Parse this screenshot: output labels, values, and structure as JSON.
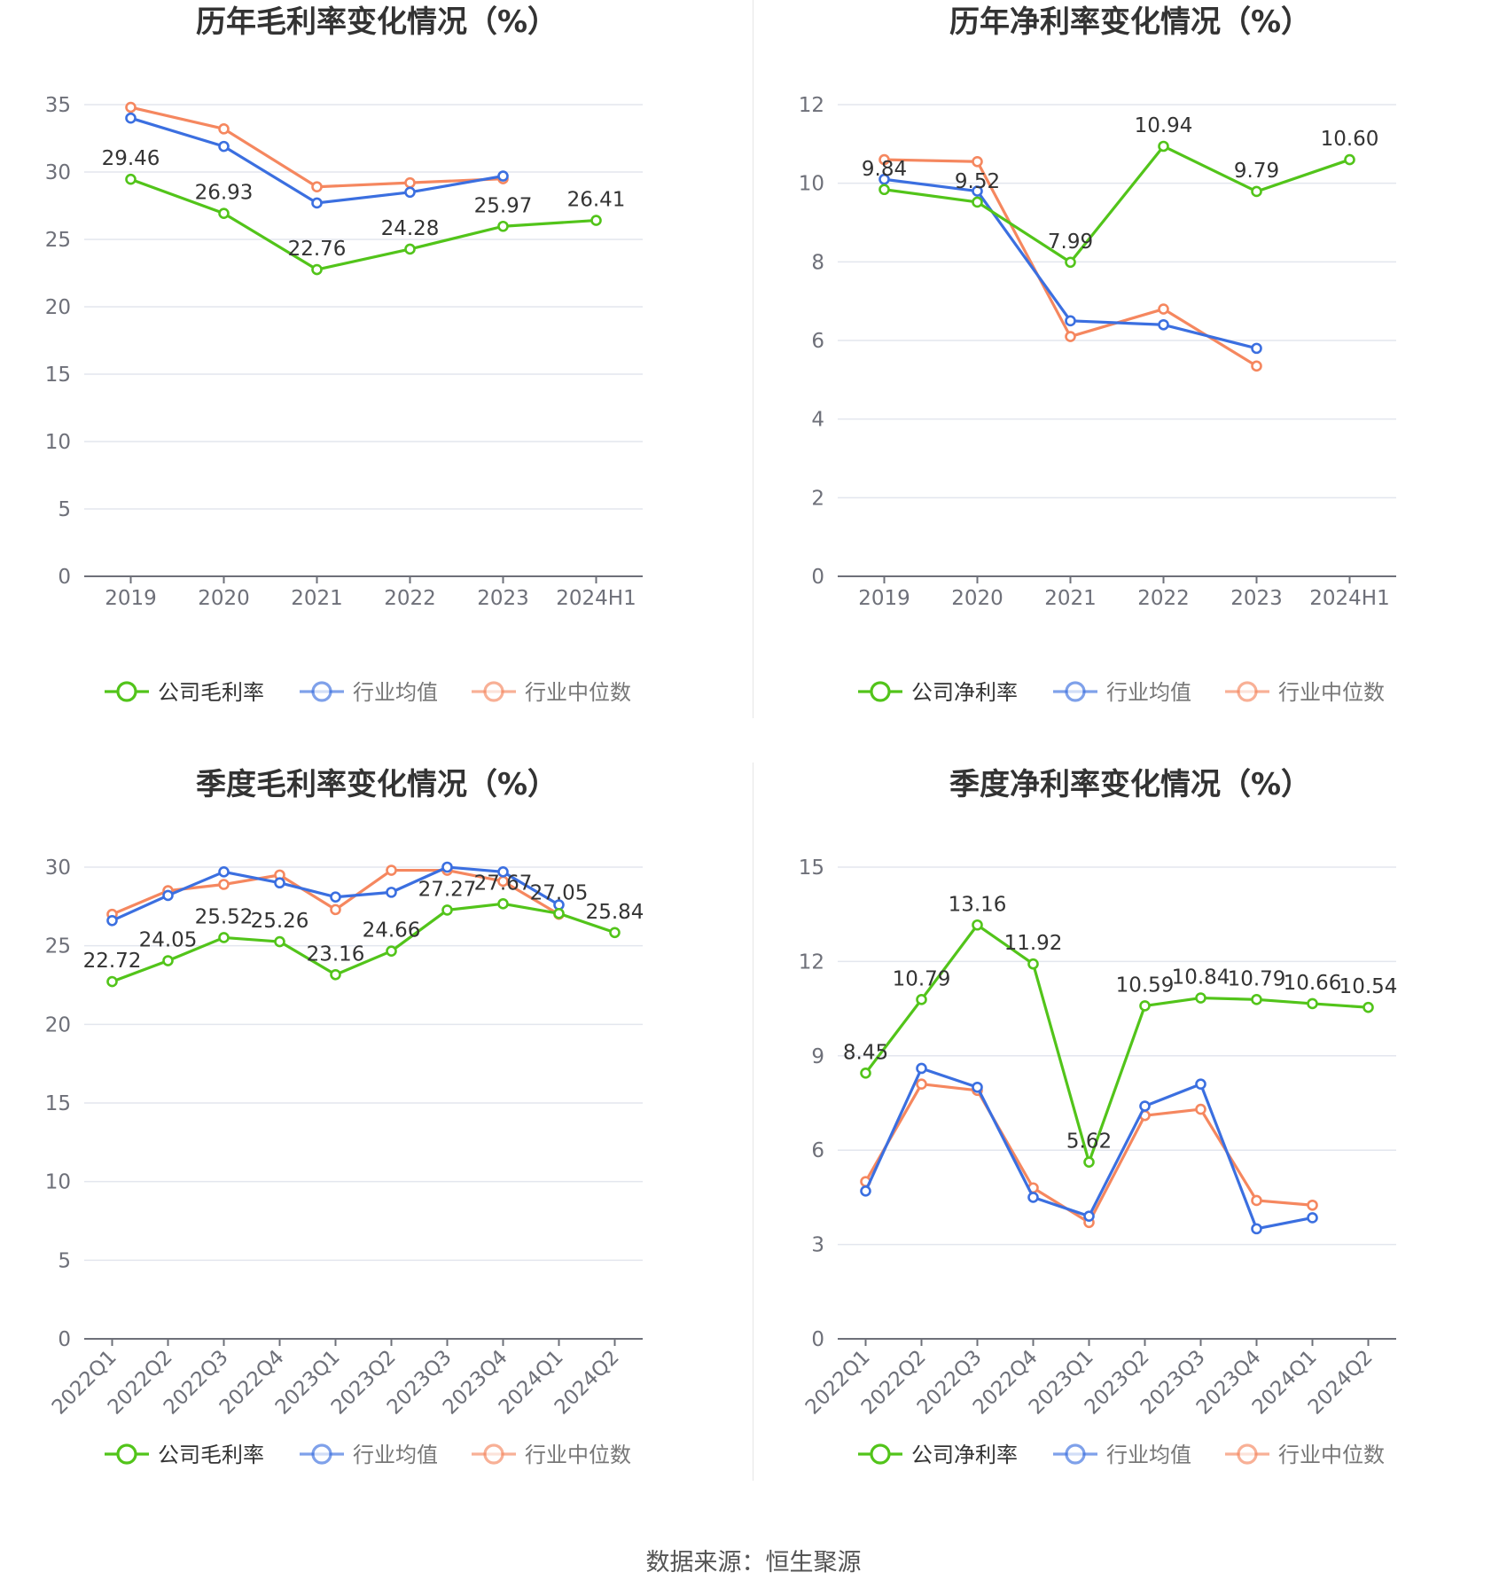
{
  "colors": {
    "company": "#52c41a",
    "avg": "#3b6fe0",
    "median": "#f5875f",
    "grid": "#e3e6ee",
    "axis": "#6e7079"
  },
  "source": "数据来源：恒生聚源",
  "chart_data": [
    {
      "type": "line",
      "title": "历年毛利率变化情况（%）",
      "categories": [
        "2019",
        "2020",
        "2021",
        "2022",
        "2023",
        "2024H1"
      ],
      "ylim": [
        0,
        35
      ],
      "yticks": [
        0,
        5,
        10,
        15,
        20,
        25,
        30,
        35
      ],
      "legend": "bottom",
      "rotate_x_labels": false,
      "series": [
        {
          "name": "公司毛利率",
          "color": "#52c41a",
          "values": [
            29.46,
            26.93,
            22.76,
            24.28,
            25.97,
            26.41
          ],
          "labels": [
            "29.46",
            "26.93",
            "22.76",
            "24.28",
            "25.97",
            "26.41"
          ]
        },
        {
          "name": "行业均值",
          "color": "#3b6fe0",
          "values": [
            34.0,
            31.9,
            27.7,
            28.5,
            29.7,
            null
          ]
        },
        {
          "name": "行业中位数",
          "color": "#f5875f",
          "values": [
            34.8,
            33.2,
            28.9,
            29.2,
            29.5,
            null
          ]
        }
      ]
    },
    {
      "type": "line",
      "title": "历年净利率变化情况（%）",
      "categories": [
        "2019",
        "2020",
        "2021",
        "2022",
        "2023",
        "2024H1"
      ],
      "ylim": [
        0,
        12
      ],
      "yticks": [
        0,
        2,
        4,
        6,
        8,
        10,
        12
      ],
      "legend": "bottom",
      "rotate_x_labels": false,
      "series": [
        {
          "name": "公司净利率",
          "color": "#52c41a",
          "values": [
            9.84,
            9.52,
            7.99,
            10.94,
            9.79,
            10.6
          ],
          "labels": [
            "9.84",
            "9.52",
            "7.99",
            "10.94",
            "9.79",
            "10.60"
          ]
        },
        {
          "name": "行业均值",
          "color": "#3b6fe0",
          "values": [
            10.1,
            9.8,
            6.5,
            6.4,
            5.8,
            null
          ]
        },
        {
          "name": "行业中位数",
          "color": "#f5875f",
          "values": [
            10.6,
            10.55,
            6.1,
            6.8,
            5.35,
            null
          ]
        }
      ]
    },
    {
      "type": "line",
      "title": "季度毛利率变化情况（%）",
      "categories": [
        "2022Q1",
        "2022Q2",
        "2022Q3",
        "2022Q4",
        "2023Q1",
        "2023Q2",
        "2023Q3",
        "2023Q4",
        "2024Q1",
        "2024Q2"
      ],
      "ylim": [
        0,
        30
      ],
      "yticks": [
        0,
        5,
        10,
        15,
        20,
        25,
        30
      ],
      "legend": "bottom",
      "rotate_x_labels": true,
      "series": [
        {
          "name": "公司毛利率",
          "color": "#52c41a",
          "values": [
            22.72,
            24.05,
            25.52,
            25.26,
            23.16,
            24.66,
            27.27,
            27.67,
            27.05,
            25.84
          ],
          "labels": [
            "22.72",
            "24.05",
            "25.52",
            "25.26",
            "23.16",
            "24.66",
            "27.27",
            "27.67",
            "27.05",
            "25.84"
          ]
        },
        {
          "name": "行业均值",
          "color": "#3b6fe0",
          "values": [
            26.6,
            28.2,
            29.7,
            29.0,
            28.1,
            28.4,
            30.0,
            29.7,
            27.6,
            null
          ]
        },
        {
          "name": "行业中位数",
          "color": "#f5875f",
          "values": [
            27.0,
            28.5,
            28.9,
            29.5,
            27.3,
            29.8,
            29.8,
            29.1,
            27.0,
            null
          ]
        }
      ]
    },
    {
      "type": "line",
      "title": "季度净利率变化情况（%）",
      "categories": [
        "2022Q1",
        "2022Q2",
        "2022Q3",
        "2022Q4",
        "2023Q1",
        "2023Q2",
        "2023Q3",
        "2023Q4",
        "2024Q1",
        "2024Q2"
      ],
      "ylim": [
        0,
        15
      ],
      "yticks": [
        0,
        3,
        6,
        9,
        12,
        15
      ],
      "legend": "bottom",
      "rotate_x_labels": true,
      "series": [
        {
          "name": "公司净利率",
          "color": "#52c41a",
          "values": [
            8.45,
            10.79,
            13.16,
            11.92,
            5.62,
            10.59,
            10.84,
            10.79,
            10.66,
            10.54
          ],
          "labels": [
            "8.45",
            "10.79",
            "13.16",
            "11.92",
            "5.62",
            "10.59",
            "10.84",
            "10.79",
            "10.66",
            "10.54"
          ]
        },
        {
          "name": "行业均值",
          "color": "#3b6fe0",
          "values": [
            4.7,
            8.6,
            8.0,
            4.5,
            3.9,
            7.4,
            8.1,
            3.5,
            3.85,
            null
          ]
        },
        {
          "name": "行业中位数",
          "color": "#f5875f",
          "values": [
            5.0,
            8.1,
            7.9,
            4.8,
            3.7,
            7.1,
            7.3,
            4.4,
            4.25,
            null
          ]
        }
      ]
    }
  ]
}
